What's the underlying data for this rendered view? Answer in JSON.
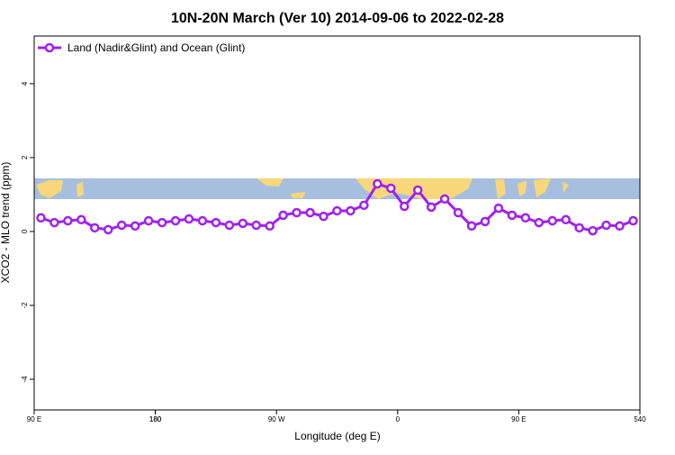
{
  "chart_data": {
    "type": "line",
    "title": "10N-20N March (Ver 10)   2014-09-06 to 2022-02-28",
    "x_label": "Longitude (deg E)",
    "y_label": "XCO2 - MLO trend (ppm)",
    "x": [
      95,
      105,
      115,
      125,
      135,
      145,
      155,
      165,
      175,
      185,
      195,
      205,
      215,
      225,
      235,
      245,
      255,
      265,
      275,
      285,
      295,
      305,
      315,
      325,
      335,
      345,
      355,
      365,
      375,
      385,
      395,
      405,
      415,
      425,
      435,
      445,
      455,
      465,
      475,
      485,
      495,
      505,
      515,
      525,
      535
    ],
    "series": [
      {
        "name": "Land (Nadir&Glint) and Ocean (Glint)",
        "color": "#a020f0",
        "values": [
          0.37,
          0.24,
          0.29,
          0.32,
          0.1,
          0.05,
          0.17,
          0.15,
          0.29,
          0.24,
          0.29,
          0.34,
          0.29,
          0.24,
          0.17,
          0.22,
          0.17,
          0.15,
          0.44,
          0.51,
          0.51,
          0.41,
          0.56,
          0.56,
          0.71,
          1.29,
          1.17,
          0.68,
          1.12,
          0.66,
          0.88,
          0.51,
          0.15,
          0.27,
          0.63,
          0.44,
          0.37,
          0.24,
          0.29,
          0.32,
          0.1,
          0.02,
          0.17,
          0.15,
          0.29
        ]
      }
    ],
    "xlim": [
      90,
      540
    ],
    "xticks": [
      {
        "value": 90,
        "label": "90 E"
      },
      180,
      {
        "value": 270,
        "label": "90 W"
      },
      {
        "value": 360,
        "label": "0"
      },
      {
        "value": 450,
        "label": "90 E"
      },
      180,
      540
    ],
    "ylim": [
      -4.83,
      5.29
    ],
    "yticks": [
      4,
      2,
      0,
      -2,
      -4
    ],
    "legend": "top-left"
  }
}
